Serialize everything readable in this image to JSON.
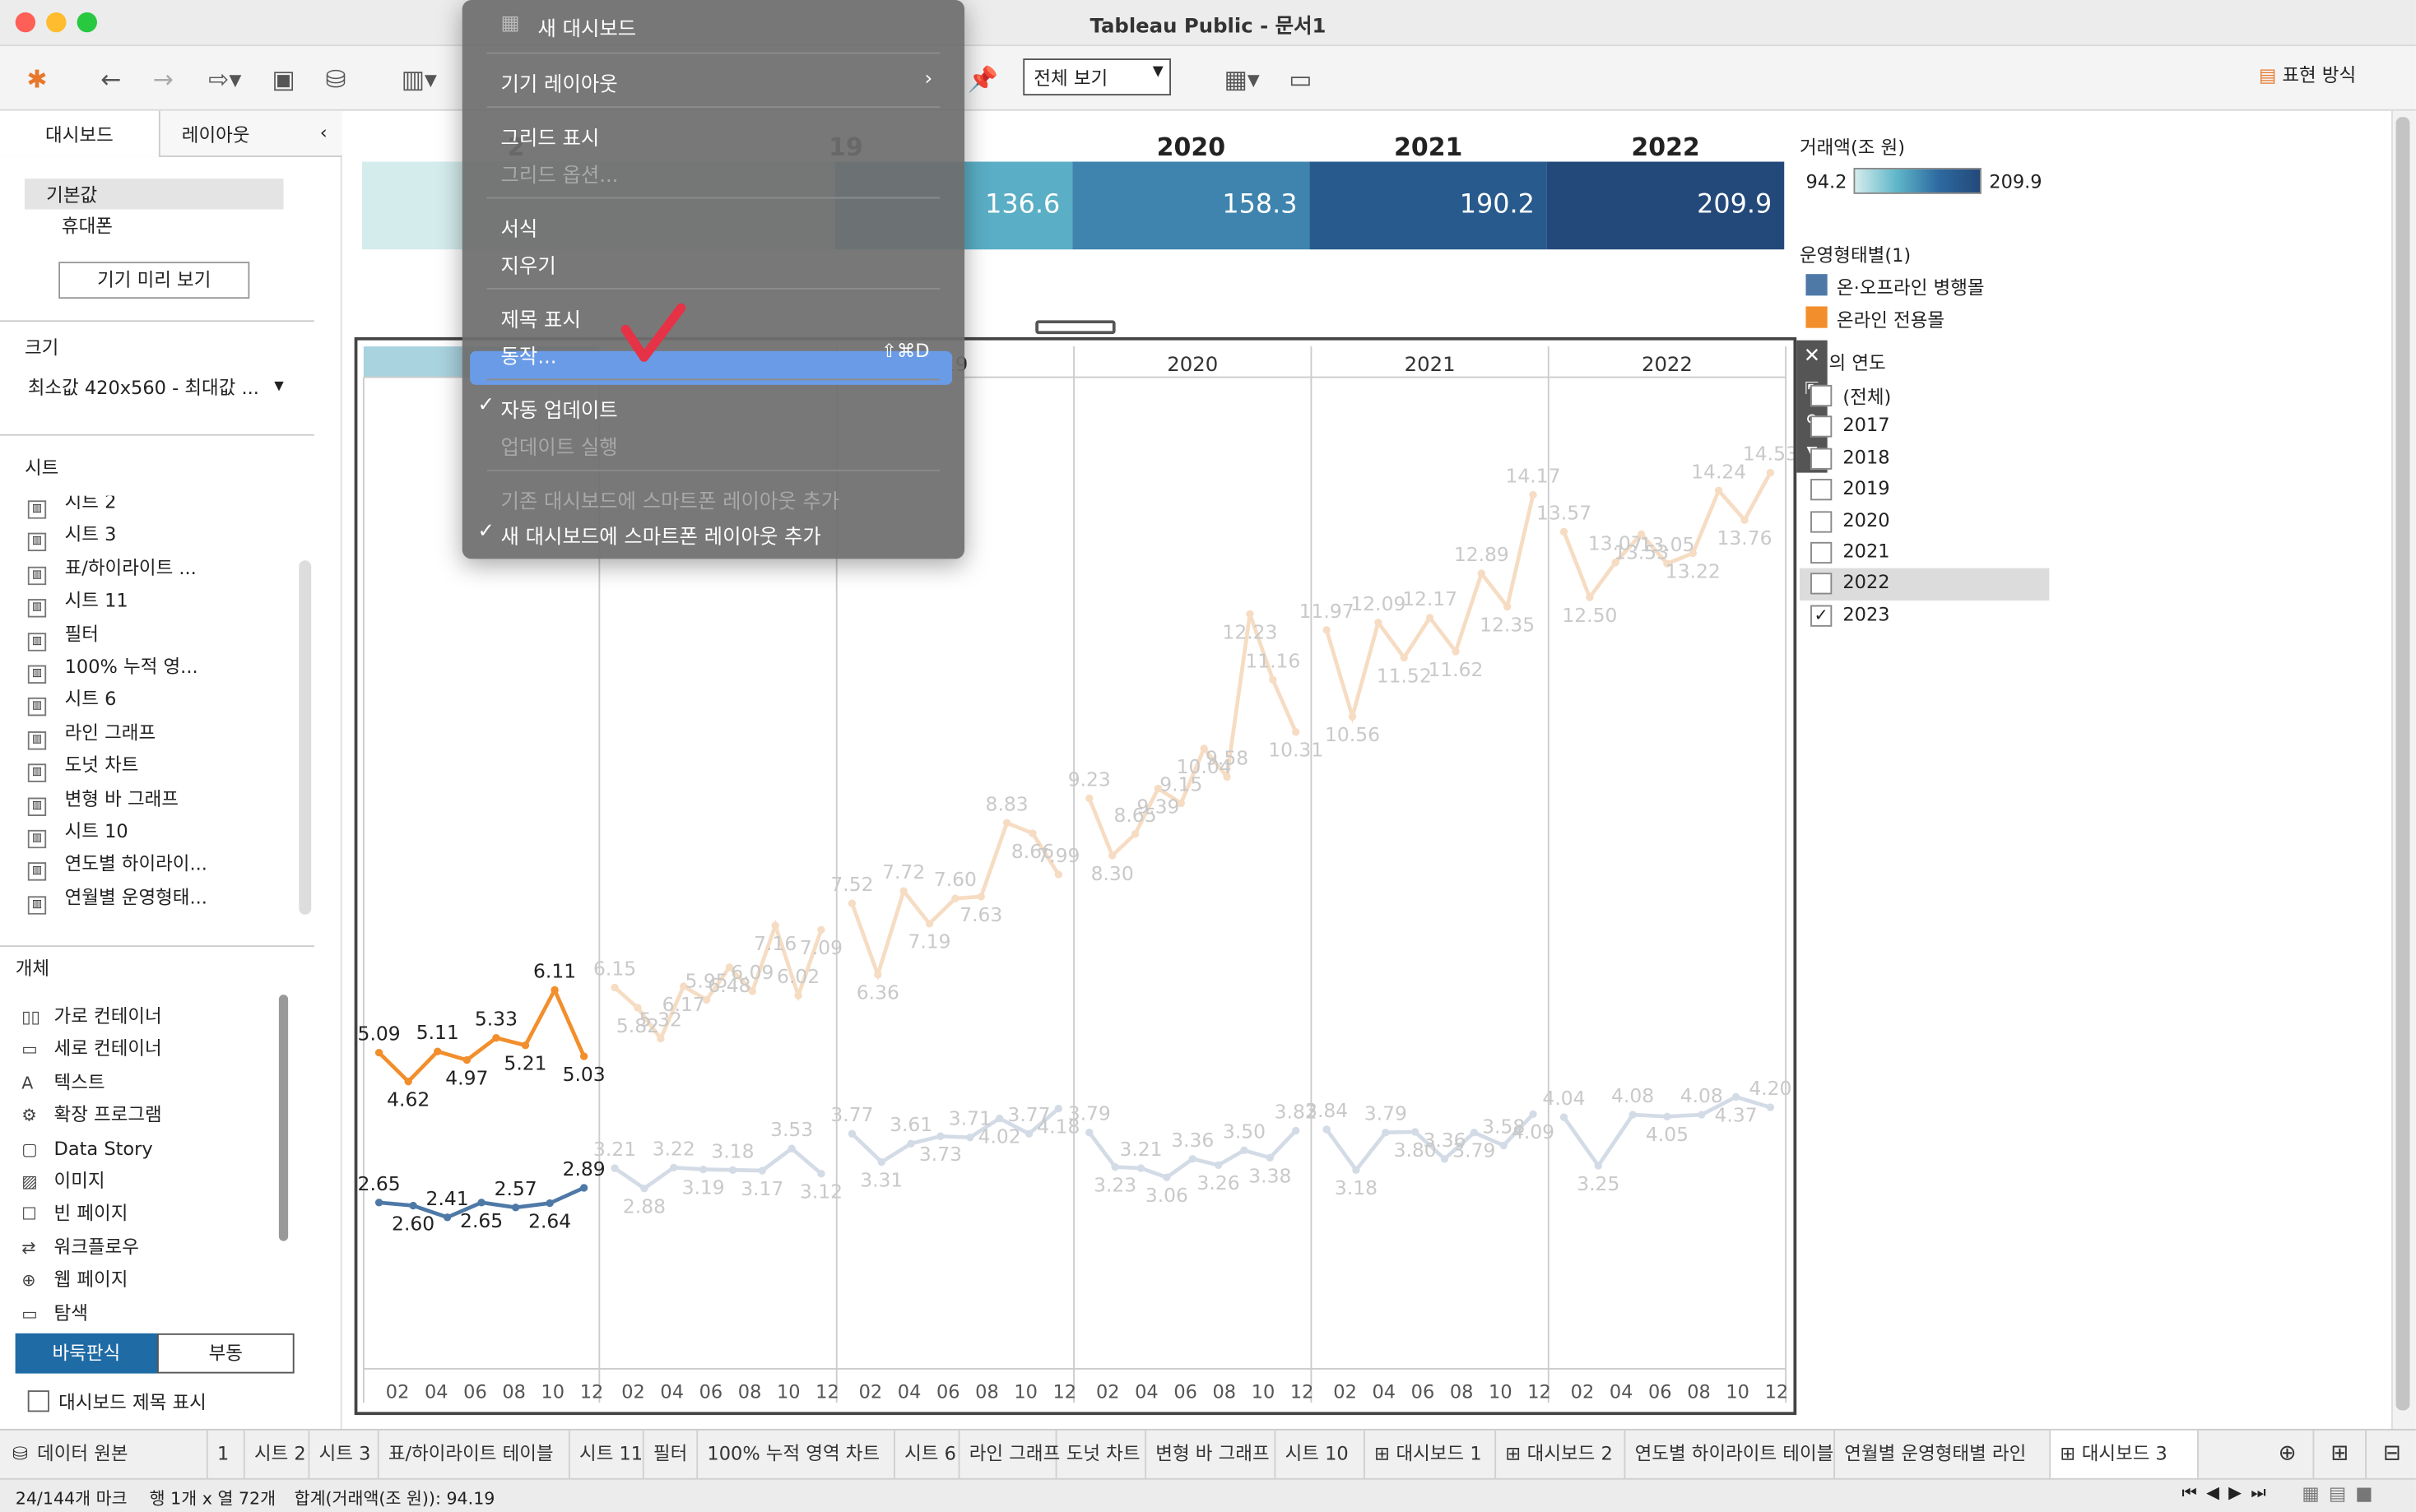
{
  "window": {
    "title": "Tableau Public - 문서1"
  },
  "toolbar": {
    "view_select": "전체 보기",
    "show_me": "표현 방식"
  },
  "sidebar": {
    "tabs": [
      "대시보드",
      "레이아웃"
    ],
    "device_default": "기본값",
    "device_phone": "휴대폰",
    "preview_button": "기기 미리 보기",
    "size_label": "크기",
    "size_value": "최소값 420x560 - 최대값 ...",
    "sheets_label": "시트",
    "sheets": [
      "시트 2",
      "시트 3",
      "표/하이라이트 ...",
      "시트 11",
      "필터",
      "100% 누적 영...",
      "시트 6",
      "라인 그래프",
      "도넛 차트",
      "변형 바 그래프",
      "시트 10",
      "연도별 하이라이...",
      "연월별 운영형태..."
    ],
    "objects_label": "개체",
    "objects": [
      {
        "icon": "▯▯",
        "label": "가로 컨테이너"
      },
      {
        "icon": "▭",
        "label": "세로 컨테이너"
      },
      {
        "icon": "A",
        "label": "텍스트"
      },
      {
        "icon": "⚙",
        "label": "확장 프로그램"
      },
      {
        "icon": "▢",
        "label": "Data Story"
      },
      {
        "icon": "▨",
        "label": "이미지"
      },
      {
        "icon": "☐",
        "label": "빈 페이지"
      },
      {
        "icon": "⇄",
        "label": "워크플로우"
      },
      {
        "icon": "⊕",
        "label": "웹 페이지"
      },
      {
        "icon": "▭",
        "label": "탐색"
      }
    ],
    "tiled": "바둑판식",
    "floating": "부동",
    "show_title": "대시보드 제목 표시"
  },
  "menu": {
    "items": [
      "새 대시보드",
      "기기 레이아웃",
      "그리드 표시",
      "그리드 옵션...",
      "서식",
      "지우기",
      "제목 표시",
      "동작...",
      "자동 업데이트",
      "업데이트 실행",
      "기존 대시보드에 스마트폰 레이아웃 추가",
      "새 대시보드에 스마트폰 레이아웃 추가"
    ],
    "shortcut": "⇧⌘D",
    "check": "✓"
  },
  "heatmap": {
    "years": [
      "2",
      "19",
      "2020",
      "2021",
      "2022"
    ],
    "cells": [
      {
        "label": "",
        "value": 94.2
      },
      {
        "label": "136.6",
        "value": 136.6
      },
      {
        "label": "158.3",
        "value": 158.3
      },
      {
        "label": "190.2",
        "value": 190.2
      },
      {
        "label": "209.9",
        "value": 209.9
      }
    ]
  },
  "legend": {
    "amount_title": "거래액(조 원)",
    "amount_min": "94.2",
    "amount_max": "209.9",
    "type_title": "운영형태별(1)",
    "types": [
      {
        "name": "온·오프라인 병행몰",
        "color": "#4e79a7"
      },
      {
        "name": "온라인 전용몰",
        "color": "#f28e2b"
      }
    ],
    "year_title": "의 연도",
    "years": [
      {
        "label": "(전체)",
        "checked": false
      },
      {
        "label": "2017",
        "checked": false
      },
      {
        "label": "2018",
        "checked": false
      },
      {
        "label": "2019",
        "checked": false
      },
      {
        "label": "2020",
        "checked": false
      },
      {
        "label": "2021",
        "checked": false
      },
      {
        "label": "2022",
        "checked": false
      },
      {
        "label": "2023",
        "checked": true
      }
    ]
  },
  "chart_data": {
    "type": "line",
    "panels": [
      "2",
      "",
      "19",
      "2020",
      "2021",
      "2022"
    ],
    "months": [
      "02",
      "04",
      "06",
      "08",
      "10",
      "12"
    ],
    "series": [
      {
        "name": "온라인 전용몰",
        "color": "#f28e2b",
        "labels": [
          [
            "5.09",
            "4.62",
            "5.11",
            "4.97",
            "5.33",
            "5.21",
            "6.11",
            "5.03"
          ],
          [
            "6.15",
            "5.82",
            "5.32",
            "6.17",
            "5.95",
            "6.48",
            "6.09",
            "7.16",
            "6.02",
            "7.09"
          ],
          [
            "7.52",
            "6.36",
            "7.72",
            "7.19",
            "7.60",
            "7.63",
            "8.83",
            "8.66",
            "7.99"
          ],
          [
            "9.23",
            "8.30",
            "8.65",
            "9.39",
            "9.15",
            "10.04",
            "9.58",
            "12.23",
            "11.16",
            "10.31"
          ],
          [
            "11.97",
            "10.56",
            "12.09",
            "11.52",
            "12.17",
            "11.62",
            "12.89",
            "12.35",
            "14.17"
          ],
          [
            "13.57",
            "12.50",
            "13.07",
            "13.53",
            "13.05",
            "13.22",
            "14.24",
            "13.76",
            "14.53"
          ]
        ]
      },
      {
        "name": "온·오프라인 병행몰",
        "color": "#4e79a7",
        "labels": [
          [
            "2.65",
            "2.60",
            "2.41",
            "2.65",
            "2.57",
            "2.64",
            "2.89"
          ],
          [
            "3.21",
            "2.88",
            "3.22",
            "3.19",
            "3.18",
            "3.17",
            "3.53",
            "3.12"
          ],
          [
            "3.77",
            "3.31",
            "3.61",
            "3.73",
            "3.71",
            "4.02",
            "3.77",
            "4.18"
          ],
          [
            "3.79",
            "3.23",
            "3.21",
            "3.06",
            "3.36",
            "3.26",
            "3.50",
            "3.38",
            "3.82"
          ],
          [
            "3.84",
            "3.18",
            "3.79",
            "3.80",
            "3.36",
            "3.79",
            "3.58",
            "4.09"
          ],
          [
            "4.04",
            "3.25",
            "4.08",
            "4.05",
            "4.08",
            "4.37",
            "4.20"
          ]
        ]
      }
    ]
  },
  "bottom_tabs": [
    "데이터 원본",
    "1",
    "시트 2",
    "시트 3",
    "표/하이라이트 테이블",
    "시트 11",
    "필터",
    "100% 누적 영역 차트",
    "시트 6",
    "라인 그래프",
    "도넛 차트",
    "변형 바 그래프",
    "시트 10",
    "대시보드 1",
    "대시보드 2",
    "연도별 하이라이트 테이블",
    "연월별 운영형태별 라인",
    "대시보드 3"
  ],
  "status": {
    "marks": "24/144개 마크",
    "rowscols": "행 1개 x 열 72개",
    "sum": "합계(거래액(조 원)): 94.19"
  }
}
